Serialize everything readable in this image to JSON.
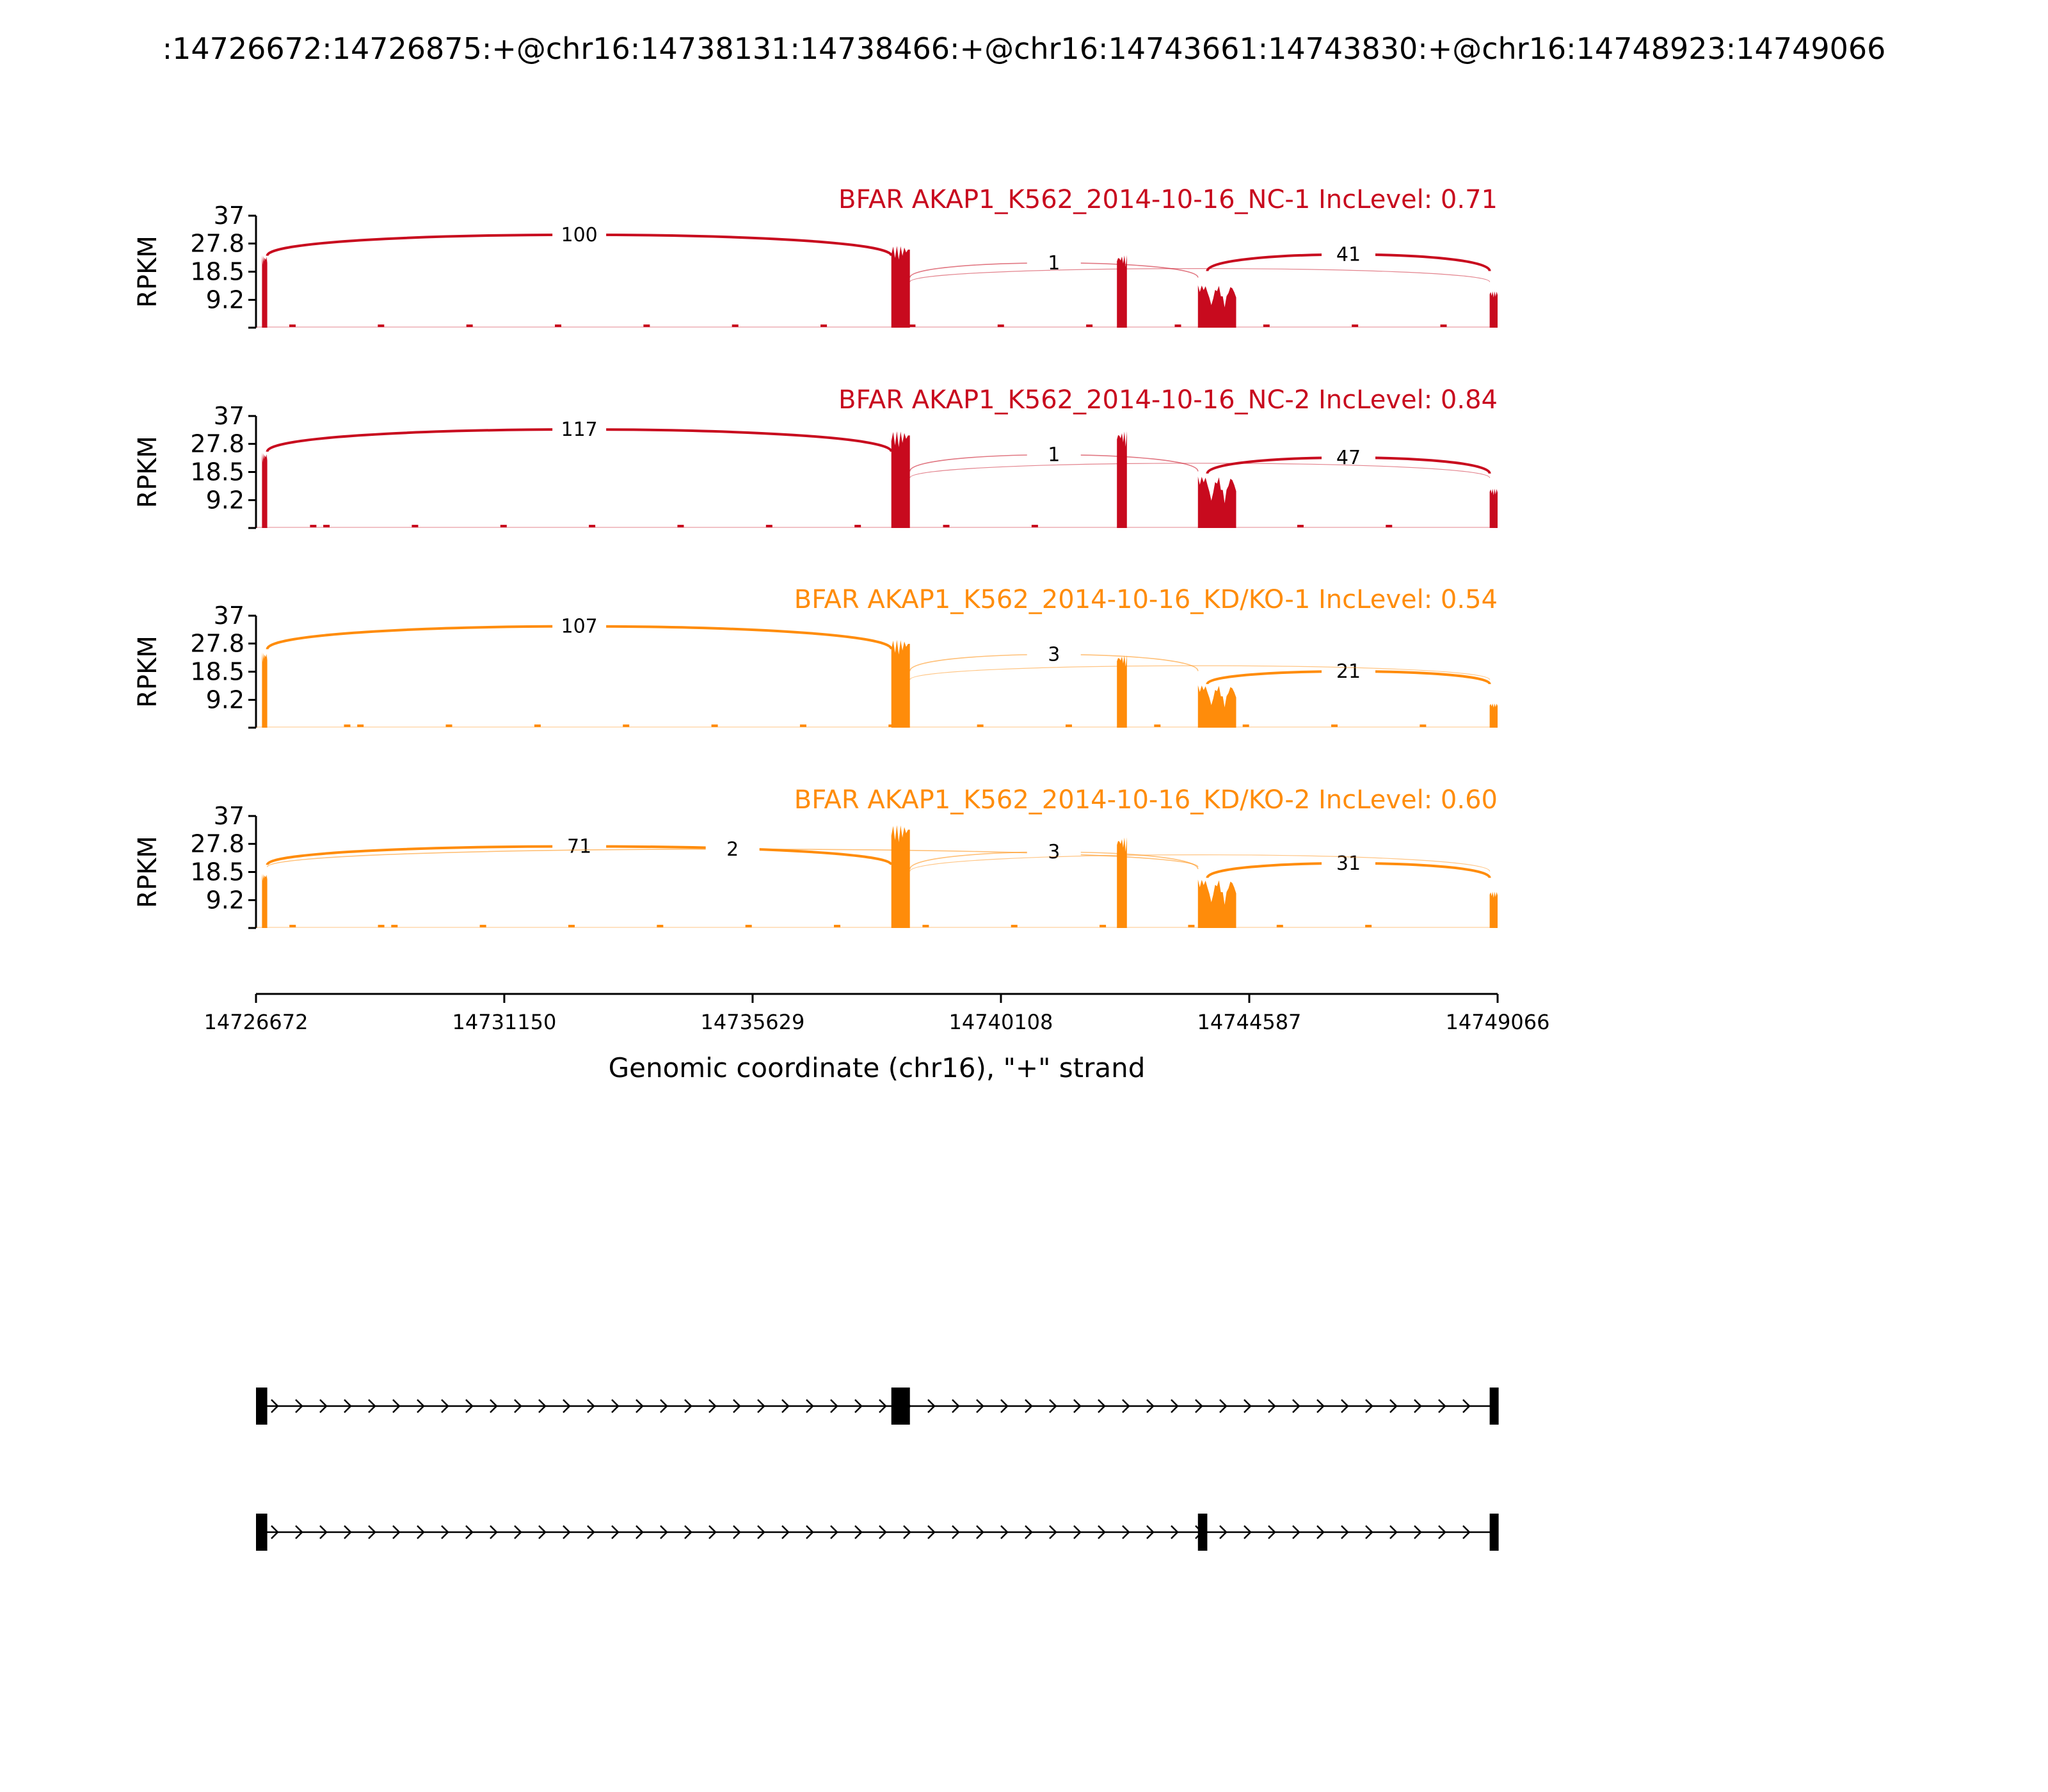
{
  "figure_title": ":14726672:14726875:+@chr16:14738131:14738466:+@chr16:14743661:14743830:+@chr16:14748923:14749066",
  "chart_data": {
    "type": "area",
    "description": "Sashimi plot: RPKM coverage per sample with splice-junction arcs labelled by read counts",
    "ylabel": "RPKM",
    "yticks": [
      "37",
      "27.8",
      "18.5",
      "9.2"
    ],
    "ylim": [
      0,
      37
    ],
    "xlabel": "Genomic coordinate (chr16), \"+\" strand",
    "xlim": [
      14726672,
      14749066
    ],
    "xticks": [
      "14726672",
      "14731150",
      "14735629",
      "14740108",
      "14744587",
      "14749066"
    ],
    "exons": [
      {
        "start": 14726672,
        "end": 14726875
      },
      {
        "start": 14738131,
        "end": 14738466
      },
      {
        "start": 14743661,
        "end": 14743830
      },
      {
        "start": 14748923,
        "end": 14749066
      }
    ],
    "tracks": [
      {
        "name": "BFAR AKAP1_K562_2014-10-16_NC-1 IncLevel: 0.71",
        "color": "#c80a1e",
        "peaks": [
          {
            "start": 14726780,
            "end": 14726875,
            "height": 24
          },
          {
            "start": 14738131,
            "end": 14738466,
            "height": 27
          },
          {
            "start": 14742200,
            "end": 14742380,
            "height": 24
          },
          {
            "start": 14743661,
            "end": 14744350,
            "height": 14
          },
          {
            "start": 14748923,
            "end": 14749066,
            "height": 12
          }
        ],
        "junctions": [
          {
            "start": 14726875,
            "end": 14738131,
            "count": 100,
            "height": 33
          },
          {
            "start": 14738466,
            "end": 14743661,
            "count": 1,
            "height": 23
          },
          {
            "start": 14743830,
            "end": 14748923,
            "count": 41,
            "height": 26
          },
          {
            "start": 14738466,
            "end": 14748923,
            "count": 0,
            "height": 21
          }
        ]
      },
      {
        "name": "BFAR AKAP1_K562_2014-10-16_NC-2 IncLevel: 0.84",
        "color": "#c80a1e",
        "peaks": [
          {
            "start": 14726780,
            "end": 14726875,
            "height": 25
          },
          {
            "start": 14738131,
            "end": 14738466,
            "height": 32
          },
          {
            "start": 14742200,
            "end": 14742380,
            "height": 32
          },
          {
            "start": 14743661,
            "end": 14744350,
            "height": 17
          },
          {
            "start": 14748923,
            "end": 14749066,
            "height": 13
          }
        ],
        "junctions": [
          {
            "start": 14726875,
            "end": 14738131,
            "count": 117,
            "height": 35
          },
          {
            "start": 14738466,
            "end": 14743661,
            "count": 1,
            "height": 26
          },
          {
            "start": 14743830,
            "end": 14748923,
            "count": 47,
            "height": 25
          },
          {
            "start": 14738466,
            "end": 14748923,
            "count": 0,
            "height": 23
          }
        ]
      },
      {
        "name": "BFAR AKAP1_K562_2014-10-16_KD/KO-1 IncLevel: 0.54",
        "color": "#ff8c0a",
        "peaks": [
          {
            "start": 14726780,
            "end": 14726875,
            "height": 25
          },
          {
            "start": 14738131,
            "end": 14738466,
            "height": 29
          },
          {
            "start": 14742200,
            "end": 14742380,
            "height": 24
          },
          {
            "start": 14743661,
            "end": 14744350,
            "height": 14
          },
          {
            "start": 14748923,
            "end": 14749066,
            "height": 8
          }
        ],
        "junctions": [
          {
            "start": 14726875,
            "end": 14738131,
            "count": 107,
            "height": 36
          },
          {
            "start": 14738466,
            "end": 14743661,
            "count": 3,
            "height": 26
          },
          {
            "start": 14743830,
            "end": 14748923,
            "count": 21,
            "height": 20
          },
          {
            "start": 14738466,
            "end": 14748923,
            "count": 0,
            "height": 22
          }
        ]
      },
      {
        "name": "BFAR AKAP1_K562_2014-10-16_KD/KO-2 IncLevel: 0.60",
        "color": "#ff8c0a",
        "peaks": [
          {
            "start": 14726780,
            "end": 14726875,
            "height": 18
          },
          {
            "start": 14738131,
            "end": 14738466,
            "height": 34
          },
          {
            "start": 14742200,
            "end": 14742380,
            "height": 30
          },
          {
            "start": 14743661,
            "end": 14744350,
            "height": 16
          },
          {
            "start": 14748923,
            "end": 14749066,
            "height": 12
          }
        ],
        "junctions": [
          {
            "start": 14726875,
            "end": 14738131,
            "count": 71,
            "height": 29
          },
          {
            "start": 14726875,
            "end": 14743661,
            "count": 2,
            "height": 28
          },
          {
            "start": 14738466,
            "end": 14743661,
            "count": 3,
            "height": 27
          },
          {
            "start": 14743830,
            "end": 14748923,
            "count": 31,
            "height": 23
          },
          {
            "start": 14738466,
            "end": 14748923,
            "count": 0,
            "height": 26
          }
        ]
      }
    ],
    "isoforms": [
      {
        "exons": [
          [
            14726672,
            14726875
          ],
          [
            14738131,
            14738466
          ],
          [
            14748923,
            14749066
          ]
        ]
      },
      {
        "exons": [
          [
            14726672,
            14726875
          ],
          [
            14743661,
            14743830
          ],
          [
            14748923,
            14749066
          ]
        ]
      }
    ]
  }
}
